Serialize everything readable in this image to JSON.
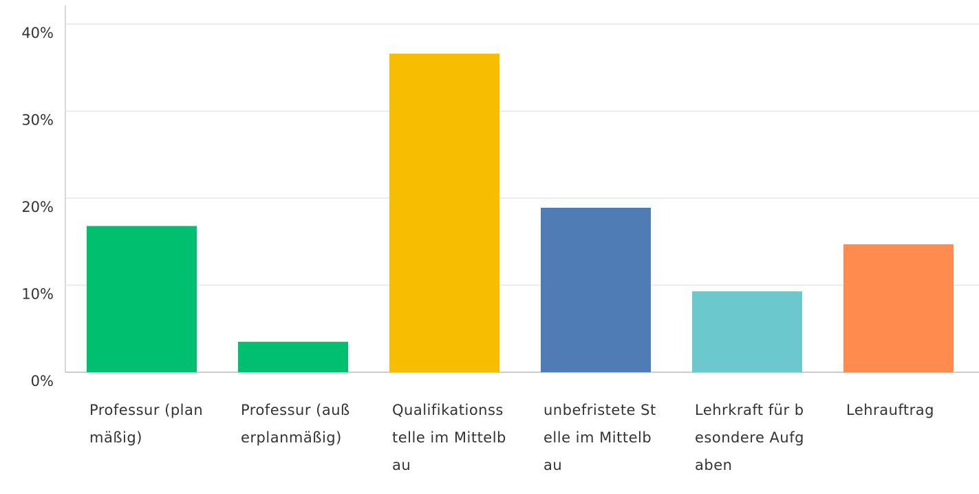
{
  "chart_data": {
    "type": "bar",
    "categories": [
      "Professur (planmäßig)",
      "Professur (außerplanmäßig)",
      "Qualifikationsstelle im Mittelbau",
      "unbefristete Stelle im Mittelbau",
      "Lehrkraft für besondere Aufgaben",
      "Lehrauftrag"
    ],
    "values": [
      16.8,
      3.5,
      36.6,
      18.9,
      9.3,
      14.7
    ],
    "colors": [
      "#00bf6f",
      "#00bf6f",
      "#f7bd00",
      "#507cb6",
      "#6bc8cd",
      "#ff8b4f"
    ],
    "ylim": [
      0,
      40
    ],
    "yticks": [
      {
        "value": 0,
        "label": "0%"
      },
      {
        "value": 10,
        "label": "10%"
      },
      {
        "value": 20,
        "label": "20%"
      },
      {
        "value": 30,
        "label": "30%"
      },
      {
        "value": 40,
        "label": "40%"
      }
    ],
    "grid": true
  }
}
